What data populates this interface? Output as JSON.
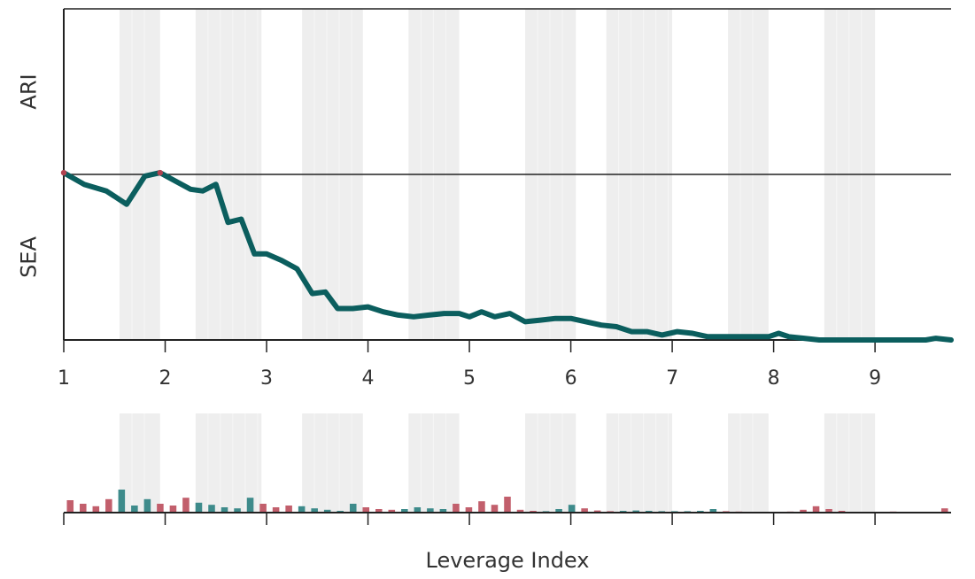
{
  "chart_data": {
    "type": "line",
    "xlabel": "Leverage Index",
    "region_labels": [
      "ARI",
      "SEA"
    ],
    "xlim": [
      1,
      9.75
    ],
    "ylim": [
      -1,
      1
    ],
    "x_ticks": [
      1,
      2,
      3,
      4,
      5,
      6,
      7,
      8,
      9
    ],
    "x_tick_labels": [
      "1",
      "2",
      "3",
      "4",
      "5",
      "6",
      "7",
      "8",
      "9"
    ],
    "baseline": 0,
    "shaded_bands": [
      [
        1.55,
        1.95
      ],
      [
        2.3,
        2.95
      ],
      [
        3.35,
        3.95
      ],
      [
        4.4,
        4.9
      ],
      [
        5.55,
        6.05
      ],
      [
        6.35,
        7.0
      ],
      [
        7.55,
        7.95
      ],
      [
        8.5,
        9.0
      ]
    ],
    "series": [
      {
        "x": [
          1.0,
          1.2,
          1.42,
          1.62,
          1.8,
          1.95,
          2.1,
          2.25,
          2.37,
          2.5,
          2.62,
          2.75,
          2.88,
          3.0,
          3.15,
          3.3,
          3.45,
          3.58,
          3.7,
          3.85,
          4.0,
          4.15,
          4.3,
          4.45,
          4.6,
          4.75,
          4.9,
          5.0,
          5.12,
          5.25,
          5.4,
          5.55,
          5.7,
          5.85,
          6.0,
          6.15,
          6.3,
          6.45,
          6.6,
          6.75,
          6.9,
          7.05,
          7.2,
          7.35,
          7.5,
          7.65,
          7.8,
          7.95,
          8.05,
          8.15,
          8.3,
          8.45,
          8.6,
          8.75,
          8.9,
          9.05,
          9.2,
          9.35,
          9.5,
          9.6,
          9.75
        ],
        "y": [
          0.01,
          -0.06,
          -0.1,
          -0.18,
          -0.01,
          0.01,
          -0.04,
          -0.09,
          -0.1,
          -0.06,
          -0.29,
          -0.27,
          -0.48,
          -0.48,
          -0.52,
          -0.57,
          -0.72,
          -0.71,
          -0.81,
          -0.81,
          -0.8,
          -0.83,
          -0.85,
          -0.86,
          -0.85,
          -0.84,
          -0.84,
          -0.86,
          -0.83,
          -0.86,
          -0.84,
          -0.89,
          -0.88,
          -0.87,
          -0.87,
          -0.89,
          -0.91,
          -0.92,
          -0.95,
          -0.95,
          -0.97,
          -0.95,
          -0.96,
          -0.98,
          -0.98,
          -0.98,
          -0.98,
          -0.98,
          -0.96,
          -0.98,
          -0.99,
          -1.0,
          -1.0,
          -1.0,
          -1.0,
          -1.0,
          -1.0,
          -1.0,
          -1.0,
          -0.99,
          -1.0
        ]
      }
    ],
    "bars": {
      "values": [
        0.35,
        0.25,
        0.18,
        0.38,
        0.65,
        0.2,
        0.38,
        0.25,
        0.2,
        0.42,
        0.28,
        0.22,
        0.15,
        0.12,
        0.42,
        0.25,
        0.15,
        0.2,
        0.18,
        0.12,
        0.08,
        0.05,
        0.25,
        0.15,
        0.1,
        0.08,
        0.1,
        0.15,
        0.12,
        0.1,
        0.25,
        0.15,
        0.32,
        0.22,
        0.45,
        0.08,
        0.05,
        0.04,
        0.1,
        0.22,
        0.12,
        0.06,
        0.04,
        0.05,
        0.06,
        0.05,
        0.04,
        0.04,
        0.04,
        0.05,
        0.1,
        0.04,
        0.03,
        0.02,
        0.02,
        0.02,
        0.03,
        0.08,
        0.18,
        0.1,
        0.05,
        0.02,
        0.02,
        0.02,
        0.03,
        0.02,
        0.01,
        0.02,
        0.12
      ],
      "colors": [
        "red",
        "red",
        "red",
        "red",
        "teal",
        "teal",
        "teal",
        "red",
        "red",
        "red",
        "teal",
        "teal",
        "teal",
        "teal",
        "teal",
        "red",
        "red",
        "red",
        "teal",
        "teal",
        "teal",
        "teal",
        "teal",
        "red",
        "red",
        "red",
        "teal",
        "teal",
        "teal",
        "teal",
        "red",
        "red",
        "red",
        "red",
        "red",
        "red",
        "red",
        "teal",
        "teal",
        "teal",
        "red",
        "red",
        "red",
        "teal",
        "teal",
        "teal",
        "teal",
        "teal",
        "teal",
        "teal",
        "teal",
        "red",
        "red",
        "teal",
        "red",
        "red",
        "red",
        "red",
        "red",
        "red",
        "red",
        "teal",
        "red",
        "red",
        "red",
        "teal",
        "red",
        "red",
        "red"
      ]
    },
    "colors": {
      "line": "#0b5e5e",
      "line_positive": "#b0424f",
      "bar_red": "#c25f6c",
      "bar_teal": "#3e8b8b",
      "band": "#eeeeee",
      "axis": "#222222"
    },
    "grid": false,
    "legend": "none"
  }
}
